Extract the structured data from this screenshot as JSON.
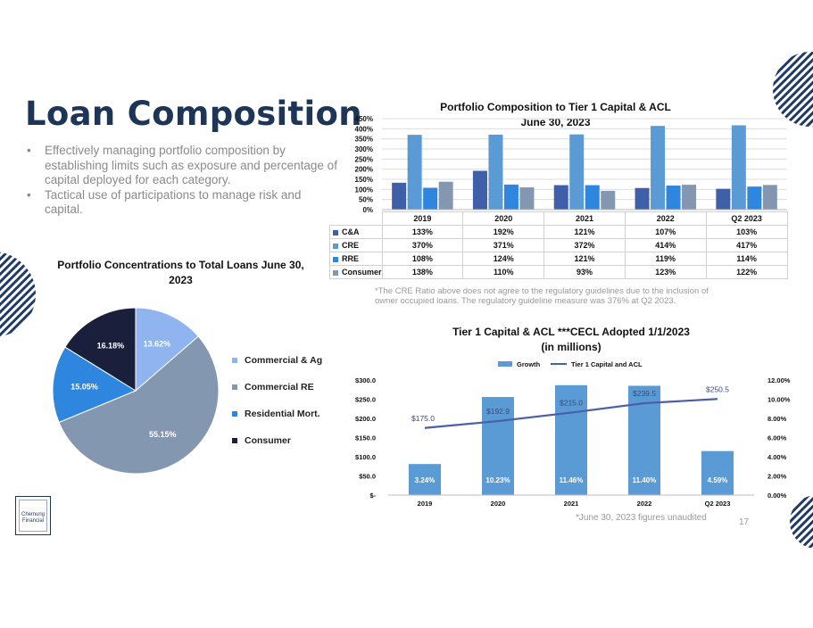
{
  "slide": {
    "title": "Loan Composition",
    "bullets": [
      "Effectively managing portfolio composition by establishing limits such as exposure and percentage of capital deployed for each category.",
      "Tactical use of participations to manage risk and capital."
    ],
    "logo_text": "Chemung Financial",
    "page_number": "17",
    "footnote": "*June 30, 2023 figures unaudited"
  },
  "chart_data": [
    {
      "type": "bar",
      "title": "Portfolio Composition to Tier 1 Capital & ACL",
      "subtitle": "June 30, 2023",
      "categories": [
        "2019",
        "2020",
        "2021",
        "2022",
        "Q2 2023"
      ],
      "ylim": [
        0,
        450
      ],
      "yticks": [
        0,
        50,
        100,
        150,
        200,
        250,
        300,
        350,
        400,
        450
      ],
      "ytick_suffix": "%",
      "grid": true,
      "legend": "data-table",
      "series": [
        {
          "name": "C&A",
          "values": [
            133,
            192,
            121,
            107,
            103
          ],
          "labels": [
            "133%",
            "192%",
            "121%",
            "107%",
            "103%"
          ],
          "color": "#3f5fa8"
        },
        {
          "name": "CRE",
          "values": [
            370,
            371,
            372,
            414,
            417
          ],
          "labels": [
            "370%",
            "371%",
            "372%",
            "414%",
            "417%"
          ],
          "color": "#5b9bd5"
        },
        {
          "name": "RRE",
          "values": [
            108,
            124,
            121,
            119,
            114
          ],
          "labels": [
            "108%",
            "124%",
            "121%",
            "119%",
            "114%"
          ],
          "color": "#2e86de"
        },
        {
          "name": "Consumer",
          "values": [
            138,
            110,
            93,
            123,
            122
          ],
          "labels": [
            "138%",
            "110%",
            "93%",
            "123%",
            "122%"
          ],
          "color": "#8497b0"
        }
      ],
      "note": "*The CRE Ratio above does not agree to the regulatory guidelines due to the inclusion of owner occupied loans. The regulatory guideline measure was 376% at Q2 2023."
    },
    {
      "type": "pie",
      "title": "Portfolio Concentrations to Total Loans June 30, 2023",
      "legend": "right",
      "slices": [
        {
          "name": "Commercial & Ag",
          "value": 13.62,
          "label": "13.62%",
          "color": "#8fb4f0"
        },
        {
          "name": "Commercial RE",
          "value": 55.15,
          "label": "55.15%",
          "color": "#8497b0"
        },
        {
          "name": "Residential Mort.",
          "value": 15.05,
          "label": "15.05%",
          "color": "#2e86de"
        },
        {
          "name": "Consumer",
          "value": 16.18,
          "label": "16.18%",
          "color": "#1a1f3c"
        }
      ]
    },
    {
      "type": "bar-line",
      "title": "Tier 1 Capital & ACL ***CECL Adopted 1/1/2023",
      "subtitle": "(in millions)",
      "categories": [
        "2019",
        "2020",
        "2021",
        "2022",
        "Q2 2023"
      ],
      "legend": "top",
      "y_left": {
        "ylim": [
          0,
          300
        ],
        "ticks": [
          "$-",
          "$50.0",
          "$100.0",
          "$150.0",
          "$200.0",
          "$250.0",
          "$300.0"
        ]
      },
      "y_right": {
        "ylim": [
          0,
          12
        ],
        "ticks": [
          "0.00%",
          "2.00%",
          "4.00%",
          "6.00%",
          "8.00%",
          "10.00%",
          "12.00%"
        ]
      },
      "bar_series": {
        "name": "Growth",
        "color": "#5b9bd5",
        "values": [
          3.24,
          10.23,
          11.46,
          11.4,
          4.59
        ],
        "labels": [
          "3.24%",
          "10.23%",
          "11.46%",
          "11.40%",
          "4.59%"
        ]
      },
      "line_series": {
        "name": "Tier 1 Capital and ACL",
        "color": "#4a5fa8",
        "values": [
          175.0,
          192.9,
          215.0,
          239.5,
          250.5
        ],
        "labels": [
          "$175.0",
          "$192.9",
          "$215.0",
          "$239.5",
          "$250.5"
        ]
      }
    }
  ]
}
